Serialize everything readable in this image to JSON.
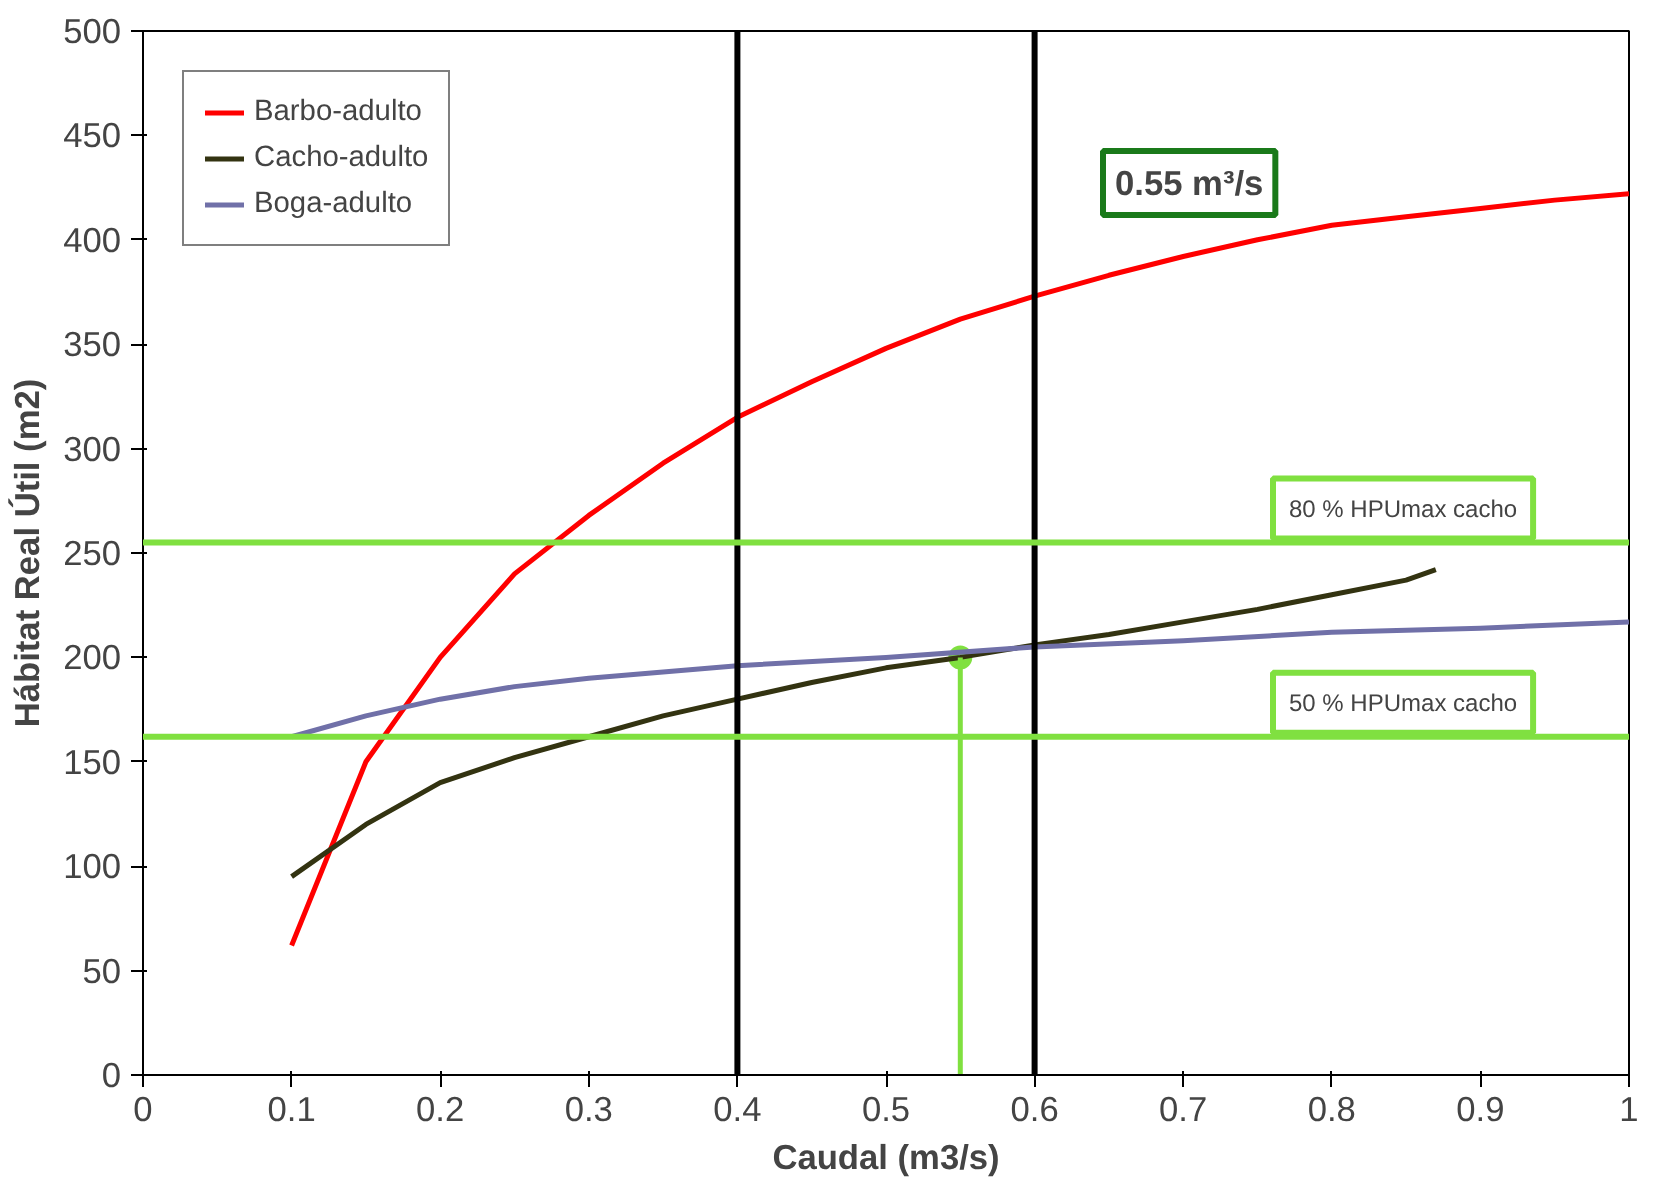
{
  "chart_data": {
    "type": "line",
    "xlabel": "Caudal (m3/s)",
    "ylabel": "Hábitat Real Útil (m2)",
    "xlim": [
      0,
      1
    ],
    "ylim": [
      0,
      500
    ],
    "xticks": [
      0,
      0.1,
      0.2,
      0.3,
      0.4,
      0.5,
      0.6,
      0.7,
      0.8,
      0.9,
      1
    ],
    "yticks": [
      0,
      50,
      100,
      150,
      200,
      250,
      300,
      350,
      400,
      450,
      500
    ],
    "grid": false,
    "legend": "top left",
    "marker": "none",
    "line_style": "solid",
    "series": [
      {
        "name": "Barbo-adulto",
        "color": "#ff0000",
        "x": [
          0.1,
          0.15,
          0.2,
          0.25,
          0.3,
          0.35,
          0.4,
          0.45,
          0.5,
          0.55,
          0.6,
          0.65,
          0.7,
          0.75,
          0.8,
          0.85,
          0.9,
          0.95,
          1.0
        ],
        "values": [
          62,
          150,
          200,
          240,
          268,
          293,
          315,
          332,
          348,
          362,
          373,
          383,
          392,
          400,
          407,
          411,
          415,
          419,
          422
        ]
      },
      {
        "name": "Cacho-adulto",
        "color": "#333311",
        "x": [
          0.1,
          0.15,
          0.2,
          0.25,
          0.3,
          0.35,
          0.4,
          0.45,
          0.5,
          0.55,
          0.6,
          0.65,
          0.7,
          0.75,
          0.8,
          0.85,
          0.87
        ],
        "values": [
          95,
          120,
          140,
          152,
          162,
          172,
          180,
          188,
          195,
          200,
          206,
          211,
          217,
          223,
          230,
          237,
          242
        ]
      },
      {
        "name": "Boga-adulto",
        "color": "#7070a8",
        "x": [
          0.1,
          0.15,
          0.2,
          0.25,
          0.3,
          0.4,
          0.5,
          0.6,
          0.7,
          0.8,
          0.9,
          1.0
        ],
        "values": [
          162,
          172,
          180,
          186,
          190,
          196,
          200,
          205,
          208,
          212,
          214,
          217
        ]
      },
      {
        "type": "line",
        "color": "#80e040",
        "x": [
          0.55,
          0.55
        ],
        "values": [
          0,
          200
        ]
      },
      {
        "type": "scatter",
        "marker": "circle",
        "color": "#80e040",
        "x": [
          0.55
        ],
        "values": [
          200
        ]
      }
    ],
    "ref_lines": [
      {
        "axis": "x",
        "value": 0.4,
        "color": "#000000"
      },
      {
        "axis": "x",
        "value": 0.6,
        "color": "#000000"
      },
      {
        "axis": "y",
        "value": 255,
        "label": "80 % HPUmax cacho",
        "color": "#80e040"
      },
      {
        "axis": "y",
        "value": 162,
        "label": "50 % HPUmax cacho",
        "color": "#80e040"
      }
    ],
    "annotations": [
      "0.55 m³/s"
    ]
  }
}
